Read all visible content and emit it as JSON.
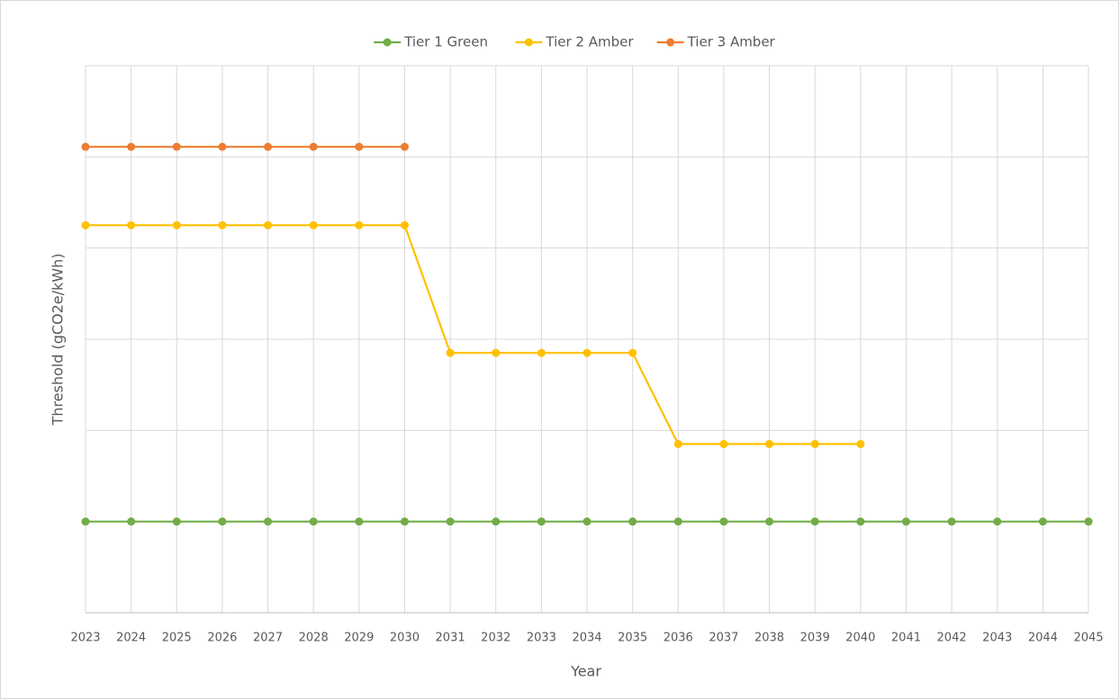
{
  "chart_data": {
    "type": "line",
    "y_label": "Threshold (gCO2e/kWh)",
    "x_label": "Year",
    "categories": [
      "2023",
      "2024",
      "2025",
      "2026",
      "2027",
      "2028",
      "2029",
      "2030",
      "2031",
      "2032",
      "2033",
      "2034",
      "2035",
      "2036",
      "2037",
      "2038",
      "2039",
      "2040",
      "2041",
      "2042",
      "2043",
      "2044",
      "2045"
    ],
    "series": [
      {
        "name": "Tier 1 Green",
        "color": "#70ad47",
        "values": [
          100,
          100,
          100,
          100,
          100,
          100,
          100,
          100,
          100,
          100,
          100,
          100,
          100,
          100,
          100,
          100,
          100,
          100,
          100,
          100,
          100,
          100,
          100
        ]
      },
      {
        "name": "Tier 2 Amber",
        "color": "#ffc000",
        "values": [
          425,
          425,
          425,
          425,
          425,
          425,
          425,
          425,
          285,
          285,
          285,
          285,
          285,
          185,
          185,
          185,
          185,
          185,
          null,
          null,
          null,
          null,
          null
        ]
      },
      {
        "name": "Tier 3 Amber",
        "color": "#ed7d31",
        "values": [
          511,
          511,
          511,
          511,
          511,
          511,
          511,
          511,
          null,
          null,
          null,
          null,
          null,
          null,
          null,
          null,
          null,
          null,
          null,
          null,
          null,
          null,
          null
        ]
      }
    ],
    "ylim": [
      0,
      600
    ],
    "yticks": [
      0,
      100,
      200,
      300,
      400,
      500,
      600
    ],
    "grid": true,
    "legend": "top"
  }
}
